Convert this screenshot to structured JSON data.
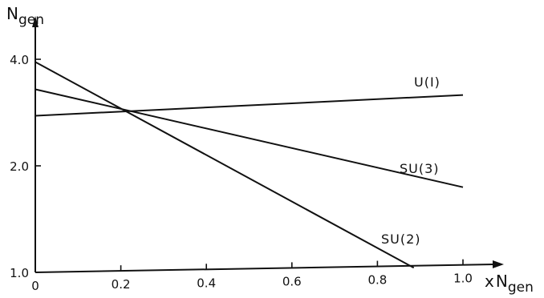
{
  "chart_data": {
    "type": "line",
    "title": "",
    "ylabel": {
      "main": "N",
      "sub": "gen"
    },
    "xlabel": {
      "prefix": "x",
      "main": "N",
      "sub": "gen"
    },
    "xlim": [
      0,
      1.0
    ],
    "ylim": [
      1.0,
      4.0
    ],
    "y_scale": "log",
    "grid": false,
    "legend": "none (series labelled inline)",
    "x_tick_labels": [
      {
        "value": 0,
        "label": "0"
      },
      {
        "value": 0.2,
        "label": "0.2"
      },
      {
        "value": 0.4,
        "label": "0.4"
      },
      {
        "value": 0.6,
        "label": "0.6"
      },
      {
        "value": 0.8,
        "label": "0.8"
      },
      {
        "value": 1.0,
        "label": "1.0"
      }
    ],
    "y_tick_labels": [
      {
        "value": 1.0,
        "label": "1.0"
      },
      {
        "value": 2.0,
        "label": "2.0"
      },
      {
        "value": 4.0,
        "label": "4.0"
      }
    ],
    "series": [
      {
        "name": "U(I)",
        "x": [
          0,
          1.0
        ],
        "y": [
          2.77,
          3.17
        ]
      },
      {
        "name": "SU(3)",
        "x": [
          0,
          1.0
        ],
        "y": [
          3.29,
          1.74
        ]
      },
      {
        "name": "SU(2)",
        "x": [
          0,
          0.885
        ],
        "y": [
          3.93,
          1.03
        ]
      }
    ]
  }
}
